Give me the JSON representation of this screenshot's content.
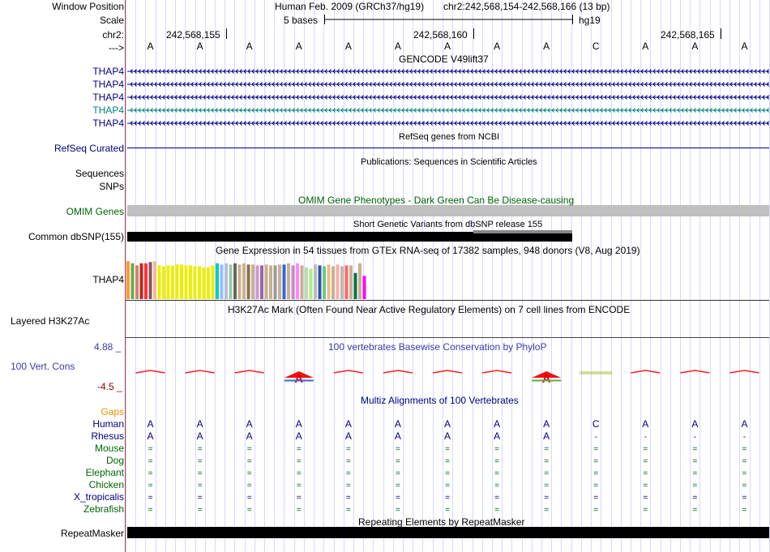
{
  "ruler": {
    "window_position_label": "Window Position",
    "scale_label": "Scale",
    "chrom_label": "chr2:",
    "strand_label": "--->",
    "assembly_text": "Human Feb. 2009 (GRCh37/hg19)",
    "region_text": "chr2:242,568,154-242,568,166 (13 bp)",
    "scale_text": "5 bases",
    "db_text": "hg19",
    "coords": [
      "242,568,155",
      "242,568,160",
      "242,568,165"
    ]
  },
  "sequence": [
    "A",
    "A",
    "A",
    "A",
    "A",
    "A",
    "A",
    "A",
    "A",
    "C",
    "A",
    "A",
    "A"
  ],
  "gencode": {
    "title": "GENCODE V49lift37",
    "transcripts": [
      "THAP4",
      "THAP4",
      "THAP4",
      "THAP4",
      "THAP4"
    ]
  },
  "refseq": {
    "title": "RefSeq genes from NCBI",
    "label": "RefSeq Curated"
  },
  "publications": {
    "title": "Publications: Sequences in Scientific Articles",
    "label": "Sequences"
  },
  "snps": {
    "label": "SNPs"
  },
  "omim": {
    "title": "OMIM Gene Phenotypes - Dark Green Can Be Disease-causing",
    "label": "OMIM Genes"
  },
  "dbsnp": {
    "title": "Short Genetic Variants from dbSNP release 155",
    "label": "Common dbSNP(155)"
  },
  "gtex": {
    "title": "Gene Expression in 54 tissues from GTEx RNA-seq of 17382 samples, 948 donors (V8, Aug 2019)",
    "label": "THAP4",
    "bar_values": [
      0.9,
      0.85,
      0.8,
      0.85,
      0.85,
      0.88,
      0.9,
      0.8,
      0.78,
      0.8,
      0.8,
      0.82,
      0.82,
      0.8,
      0.8,
      0.78,
      0.78,
      0.75,
      0.75,
      0.8,
      0.85,
      0.82,
      0.85,
      0.82,
      0.85,
      0.82,
      0.85,
      0.82,
      0.82,
      0.8,
      0.8,
      0.82,
      0.8,
      0.8,
      0.82,
      0.82,
      0.85,
      0.8,
      0.85,
      0.8,
      0.75,
      0.72,
      0.82,
      0.8,
      0.78,
      0.82,
      0.78,
      0.82,
      0.78,
      0.8,
      0.8,
      0.62,
      0.85,
      0.55
    ],
    "bar_colors": [
      "#ff9933",
      "#66aa55",
      "#cc8866",
      "#cc2222",
      "#ff3333",
      "#885566",
      "#eebb99",
      "#eeee00",
      "#eeee00",
      "#eeee00",
      "#eeee00",
      "#eeee00",
      "#eeee00",
      "#eeee00",
      "#eeee00",
      "#eeee00",
      "#eeee00",
      "#eeee00",
      "#eeee00",
      "#eeee00",
      "#00cccc",
      "#99bbff",
      "#bbbbdd",
      "#99ccaa",
      "#666666",
      "#cbb08f",
      "#cbb08f",
      "#8a7050",
      "#cbb08f",
      "#cc99cc",
      "#9966aa",
      "#cbb08f",
      "#cbb08f",
      "#999999",
      "#cbb08f",
      "#3366dd",
      "#cbb08f",
      "#cc88cc",
      "#ff88ff",
      "#cbb08f",
      "#bbddaa",
      "#aaee88",
      "#bbbbbb",
      "#3355aa",
      "#66cc88",
      "#eebb88",
      "#cbb08f",
      "#ffaaaa",
      "#bbbbaa",
      "#ff6666",
      "#cbb08f",
      "#007744",
      "#cbb08f",
      "#ff00ff"
    ]
  },
  "h3k27ac": {
    "title": "H3K27Ac Mark (Often Found Near Active Regulatory Elements) on 7 cell lines from ENCODE",
    "label": "Layered H3K27Ac"
  },
  "phylop": {
    "title": "100 vertebrates Basewise Conservation by PhyloP",
    "label": "100 Vert. Cons",
    "max": "4.88 _",
    "min": "-4.5 _"
  },
  "multiz": {
    "title": "Multiz Alignments of 100 Vertebrates",
    "gaps_label": "Gaps",
    "species": [
      {
        "name": "Human",
        "bases": [
          "A",
          "A",
          "A",
          "A",
          "A",
          "A",
          "A",
          "A",
          "A",
          "C",
          "A",
          "A",
          "A"
        ],
        "color": "#000080"
      },
      {
        "name": "Rhesus",
        "bases": [
          "A",
          "A",
          "A",
          "A",
          "A",
          "A",
          "A",
          "A",
          "A",
          "-",
          "-",
          "-",
          "-"
        ],
        "color": "#000080"
      },
      {
        "name": "Mouse",
        "bases": [
          "=",
          "=",
          "=",
          "=",
          "=",
          "=",
          "=",
          "=",
          "=",
          "=",
          "=",
          "=",
          "="
        ],
        "color": "#006400"
      },
      {
        "name": "Dog",
        "bases": [
          "=",
          "=",
          "=",
          "=",
          "=",
          "=",
          "=",
          "=",
          "=",
          "=",
          "=",
          "=",
          "="
        ],
        "color": "#006400"
      },
      {
        "name": "Elephant",
        "bases": [
          "=",
          "=",
          "=",
          "=",
          "=",
          "=",
          "=",
          "=",
          "=",
          "=",
          "=",
          "=",
          "="
        ],
        "color": "#006400"
      },
      {
        "name": "Chicken",
        "bases": [
          "=",
          "=",
          "=",
          "=",
          "=",
          "=",
          "=",
          "=",
          "=",
          "=",
          "=",
          "=",
          "="
        ],
        "color": "#006400"
      },
      {
        "name": "X_tropicalis",
        "bases": [
          "=",
          "=",
          "=",
          "=",
          "=",
          "=",
          "=",
          "=",
          "=",
          "=",
          "=",
          "=",
          "="
        ],
        "color": "#000080"
      },
      {
        "name": "Zebrafish",
        "bases": [
          "=",
          "=",
          "=",
          "=",
          "=",
          "=",
          "=",
          "=",
          "=",
          "=",
          "=",
          "=",
          "="
        ],
        "color": "#006400"
      }
    ]
  },
  "repeatmasker": {
    "title": "Repeating Elements by RepeatMasker",
    "label": "RepeatMasker"
  },
  "colors": {
    "navy": "#000080",
    "omim_gray": "#c0c0c0",
    "guide_line": "#d8d8ff",
    "teal_tx": "#008080"
  }
}
